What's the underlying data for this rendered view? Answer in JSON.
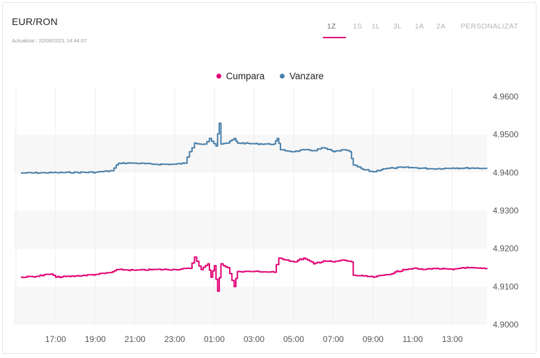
{
  "header": {
    "title": "EUR/RON",
    "updated": "Actualizat : 22/06/2021 14:44:07"
  },
  "range_tabs": [
    {
      "label": "1Z",
      "active": true
    },
    {
      "label": "1S",
      "active": false
    },
    {
      "label": "1L",
      "active": false
    },
    {
      "label": "3L",
      "active": false
    },
    {
      "label": "1A",
      "active": false
    },
    {
      "label": "2A",
      "active": false
    },
    {
      "label": "PERSONALIZAT",
      "active": false
    }
  ],
  "colors": {
    "buy": "#e20074",
    "sell": "#4a7fa8",
    "accent": "#e20074",
    "band": "#f7f7f7",
    "grid": "#eeeeee"
  },
  "chart_data": {
    "type": "line",
    "legend": [
      {
        "name": "Cumpara",
        "color": "#e20074"
      },
      {
        "name": "Vanzare",
        "color": "#4a7fa8"
      }
    ],
    "xlabel": "",
    "ylabel": "",
    "ylim": [
      4.9,
      4.96
    ],
    "xlim": [
      "15:15",
      "14:45"
    ],
    "y_ticks": [
      "4.9600",
      "4.9500",
      "4.9400",
      "4.9300",
      "4.9200",
      "4.9100",
      "4.9000"
    ],
    "x_ticks": [
      "17:00",
      "19:00",
      "21:00",
      "23:00",
      "01:00",
      "03:00",
      "05:00",
      "07:00",
      "09:00",
      "11:00",
      "13:00"
    ],
    "grid": true,
    "series": [
      {
        "name": "Vanzare",
        "points": [
          [
            "15:15",
            4.9399
          ],
          [
            "17:00",
            4.94
          ],
          [
            "19:00",
            4.9401
          ],
          [
            "19:50",
            4.9405
          ],
          [
            "20:10",
            4.9425
          ],
          [
            "21:00",
            4.9425
          ],
          [
            "22:00",
            4.9422
          ],
          [
            "23:00",
            4.9422
          ],
          [
            "23:30",
            4.9425
          ],
          [
            "23:45",
            4.9455
          ],
          [
            "00:00",
            4.9478
          ],
          [
            "00:30",
            4.9475
          ],
          [
            "00:45",
            4.949
          ],
          [
            "01:05",
            4.947
          ],
          [
            "01:15",
            4.953
          ],
          [
            "01:20",
            4.9475
          ],
          [
            "01:40",
            4.9478
          ],
          [
            "02:00",
            4.949
          ],
          [
            "02:10",
            4.9478
          ],
          [
            "03:00",
            4.9476
          ],
          [
            "04:00",
            4.9475
          ],
          [
            "04:10",
            4.949
          ],
          [
            "04:20",
            4.946
          ],
          [
            "05:00",
            4.9455
          ],
          [
            "05:30",
            4.946
          ],
          [
            "06:00",
            4.9458
          ],
          [
            "06:30",
            4.9465
          ],
          [
            "07:00",
            4.9455
          ],
          [
            "07:30",
            4.946
          ],
          [
            "07:50",
            4.9455
          ],
          [
            "08:00",
            4.942
          ],
          [
            "08:30",
            4.9408
          ],
          [
            "09:00",
            4.9402
          ],
          [
            "09:30",
            4.941
          ],
          [
            "10:00",
            4.9412
          ],
          [
            "10:30",
            4.9414
          ],
          [
            "11:00",
            4.9413
          ],
          [
            "12:00",
            4.941
          ],
          [
            "13:00",
            4.9412
          ],
          [
            "14:00",
            4.9412
          ],
          [
            "14:45",
            4.9411
          ]
        ]
      },
      {
        "name": "Cumpara",
        "points": [
          [
            "15:15",
            4.9125
          ],
          [
            "16:00",
            4.9127
          ],
          [
            "16:45",
            4.9133
          ],
          [
            "17:00",
            4.9125
          ],
          [
            "18:00",
            4.9128
          ],
          [
            "19:00",
            4.9132
          ],
          [
            "19:45",
            4.9137
          ],
          [
            "20:10",
            4.9145
          ],
          [
            "21:00",
            4.9143
          ],
          [
            "22:00",
            4.9145
          ],
          [
            "23:00",
            4.9145
          ],
          [
            "23:45",
            4.9148
          ],
          [
            "00:00",
            4.9178
          ],
          [
            "00:20",
            4.9145
          ],
          [
            "00:40",
            4.916
          ],
          [
            "00:50",
            4.9125
          ],
          [
            "01:00",
            4.9155
          ],
          [
            "01:10",
            4.9088
          ],
          [
            "01:20",
            4.916
          ],
          [
            "01:40",
            4.915
          ],
          [
            "02:00",
            4.91
          ],
          [
            "02:10",
            4.914
          ],
          [
            "03:00",
            4.914
          ],
          [
            "04:00",
            4.9138
          ],
          [
            "04:15",
            4.9175
          ],
          [
            "04:40",
            4.917
          ],
          [
            "05:00",
            4.9165
          ],
          [
            "05:30",
            4.9175
          ],
          [
            "06:00",
            4.916
          ],
          [
            "06:30",
            4.9168
          ],
          [
            "07:00",
            4.9165
          ],
          [
            "07:30",
            4.917
          ],
          [
            "07:55",
            4.9165
          ],
          [
            "08:00",
            4.913
          ],
          [
            "08:30",
            4.9128
          ],
          [
            "09:00",
            4.9125
          ],
          [
            "09:30",
            4.913
          ],
          [
            "10:00",
            4.9135
          ],
          [
            "10:30",
            4.9145
          ],
          [
            "11:00",
            4.9148
          ],
          [
            "11:30",
            4.9145
          ],
          [
            "12:00",
            4.9148
          ],
          [
            "13:00",
            4.9145
          ],
          [
            "13:30",
            4.915
          ],
          [
            "14:45",
            4.9147
          ]
        ]
      }
    ]
  }
}
